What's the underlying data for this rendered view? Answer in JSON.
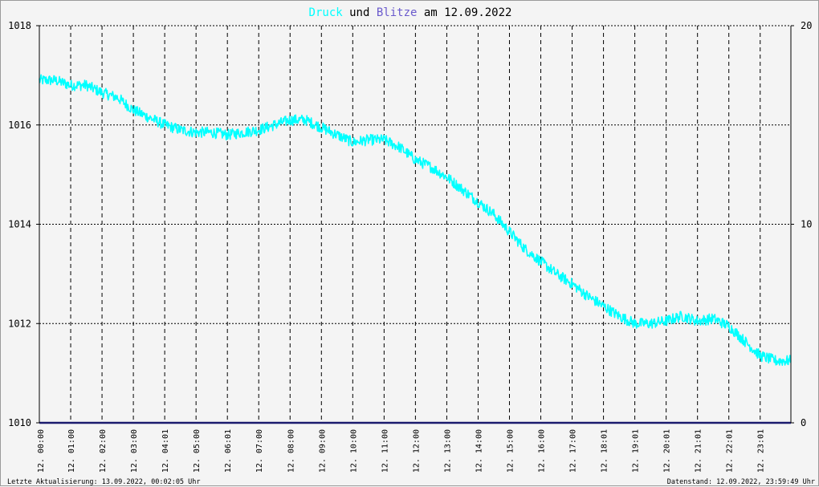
{
  "chart_data": {
    "type": "line",
    "title": {
      "word1": "Druck",
      "word2": "und",
      "word3": "Blitze",
      "word4": "am",
      "date": "12.09.2022"
    },
    "colors": {
      "druck": "#00ffff",
      "blitze": "#6a5acd",
      "neutral": "#000000",
      "zero_line": "#1a1a6e",
      "background": "#f4f4f4"
    },
    "left_axis": {
      "range": [
        1010,
        1018
      ],
      "ticks": [
        "1010",
        "1012",
        "1014",
        "1016",
        "1018"
      ]
    },
    "right_axis": {
      "range": [
        0,
        20
      ],
      "ticks": [
        "0",
        "10",
        "20"
      ]
    },
    "x_ticks": [
      "12. 00:00",
      "12. 01:00",
      "12. 02:00",
      "12. 03:00",
      "12. 04:01",
      "12. 05:00",
      "12. 06:01",
      "12. 07:00",
      "12. 08:00",
      "12. 09:00",
      "12. 10:00",
      "12. 11:00",
      "12. 12:00",
      "12. 13:00",
      "12. 14:00",
      "12. 15:00",
      "12. 16:00",
      "12. 17:00",
      "12. 18:01",
      "12. 19:01",
      "12. 20:01",
      "12. 21:01",
      "12. 22:01",
      "12. 23:01"
    ],
    "grid": true,
    "series": [
      {
        "key": "druck",
        "x_hours": [
          0,
          0.5,
          1,
          1.5,
          2,
          2.5,
          3,
          3.5,
          4,
          4.5,
          5,
          5.5,
          6,
          6.5,
          7,
          7.5,
          8,
          8.5,
          9,
          9.5,
          10,
          10.5,
          11,
          11.5,
          12,
          12.5,
          13,
          13.5,
          14,
          14.5,
          15,
          15.5,
          16,
          16.5,
          17,
          17.5,
          18,
          18.5,
          19,
          19.5,
          20,
          20.5,
          21,
          21.5,
          22,
          22.5,
          23,
          23.5,
          23.98
        ],
        "values": [
          1016.9,
          1016.9,
          1016.8,
          1016.8,
          1016.65,
          1016.55,
          1016.3,
          1016.15,
          1016.0,
          1015.9,
          1015.85,
          1015.85,
          1015.8,
          1015.85,
          1015.9,
          1016.0,
          1016.1,
          1016.1,
          1015.95,
          1015.8,
          1015.65,
          1015.7,
          1015.7,
          1015.55,
          1015.3,
          1015.15,
          1014.95,
          1014.7,
          1014.45,
          1014.2,
          1013.85,
          1013.5,
          1013.25,
          1013.0,
          1012.8,
          1012.55,
          1012.35,
          1012.15,
          1012.0,
          1012.0,
          1012.05,
          1012.15,
          1012.05,
          1012.1,
          1011.95,
          1011.65,
          1011.35,
          1011.25,
          1011.25
        ]
      },
      {
        "key": "blitze",
        "x_hours": [
          0,
          23.98
        ],
        "values": [
          0,
          0
        ]
      }
    ],
    "footer": {
      "left": "Letzte Aktualisierung: 13.09.2022, 00:02:05 Uhr",
      "right": "Datenstand: 12.09.2022, 23:59:49 Uhr"
    }
  }
}
